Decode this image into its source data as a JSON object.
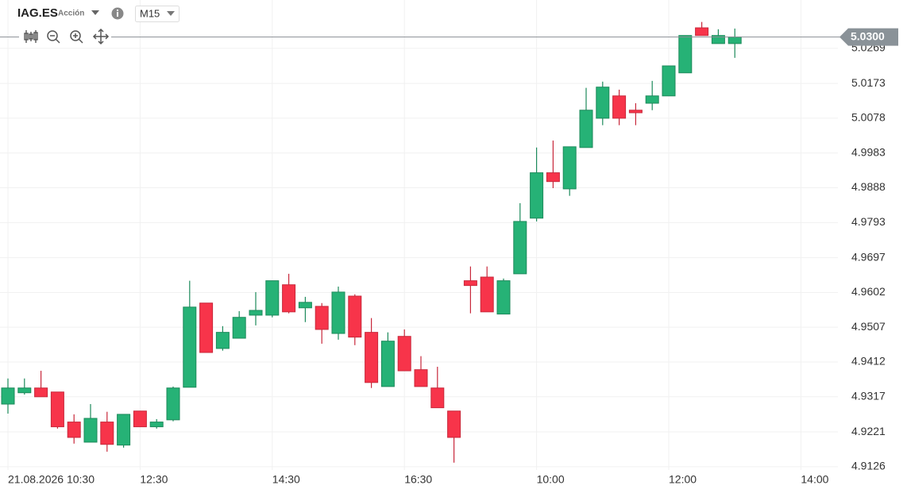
{
  "header": {
    "symbol": "IAG.ES",
    "instrument_type": "Acción",
    "timeframe": "M15"
  },
  "chart_data": {
    "type": "candlestick",
    "categories": [
      "21.08.2026 10:30",
      null,
      null,
      null,
      null,
      null,
      null,
      null,
      "12:30",
      null,
      null,
      null,
      null,
      null,
      null,
      null,
      "14:30",
      null,
      null,
      null,
      null,
      null,
      null,
      null,
      "16:30",
      null,
      null,
      null,
      null,
      null,
      null,
      null,
      "10:00",
      null,
      null,
      null,
      null,
      null,
      null,
      null,
      "12:00",
      null,
      null,
      null,
      null,
      null,
      null,
      null,
      "14:00"
    ],
    "open": [
      4.9297,
      4.9328,
      4.9341,
      4.933,
      4.9248,
      4.9193,
      4.9248,
      4.9185,
      4.9278,
      4.9235,
      4.9254,
      4.9343,
      4.9573,
      4.9449,
      4.9477,
      4.954,
      4.954,
      4.9623,
      4.956,
      4.9564,
      4.949,
      4.9592,
      4.9493,
      4.9345,
      4.9482,
      4.9391,
      4.9341,
      4.9278,
      4.9634,
      4.9644,
      4.9543,
      4.9653,
      4.9805,
      4.9929,
      4.9885,
      4.9998,
      5.0078,
      5.0139,
      5.01,
      5.0119,
      5.0139,
      5.0202,
      5.0325,
      5.0282,
      5.0282,
      null,
      null,
      null,
      null
    ],
    "high": [
      4.9367,
      4.9367,
      4.9388,
      4.933,
      4.9269,
      4.9297,
      4.9276,
      4.9269,
      4.9278,
      4.9256,
      4.9345,
      4.9634,
      4.9573,
      4.951,
      4.9551,
      4.9603,
      4.9634,
      4.9653,
      4.959,
      4.9573,
      4.9618,
      4.9597,
      4.9532,
      4.9493,
      4.9501,
      4.9428,
      4.9399,
      4.9278,
      4.9673,
      4.9673,
      4.964,
      4.9846,
      4.9998,
      5.0017,
      5.0,
      5.0161,
      5.0178,
      5.0156,
      5.0119,
      5.018,
      5.0221,
      5.0304,
      5.0341,
      5.0321,
      5.0323,
      null,
      null,
      null,
      null
    ],
    "low": [
      4.9271,
      4.9323,
      4.9317,
      4.923,
      4.9189,
      4.9193,
      4.9167,
      4.9178,
      4.9235,
      4.923,
      4.925,
      4.9343,
      4.9438,
      4.9443,
      4.9477,
      4.9512,
      4.9534,
      4.9545,
      4.9521,
      4.9462,
      4.9473,
      4.9458,
      4.9341,
      4.9345,
      4.9388,
      4.9345,
      4.9287,
      4.9137,
      4.9545,
      4.9549,
      4.9543,
      4.9653,
      4.9796,
      4.9887,
      4.9866,
      4.9998,
      5.0059,
      5.0059,
      5.0059,
      5.01,
      5.0139,
      5.0202,
      5.0304,
      5.0282,
      5.0243,
      null,
      null,
      null,
      null
    ],
    "close": [
      4.9341,
      4.9341,
      4.9317,
      4.9235,
      4.9206,
      4.9258,
      4.9187,
      4.9269,
      4.9235,
      4.9248,
      4.9341,
      4.9562,
      4.9438,
      4.9493,
      4.9534,
      4.9553,
      4.9634,
      4.9549,
      4.9575,
      4.9501,
      4.9603,
      4.948,
      4.9356,
      4.9469,
      4.9388,
      4.9345,
      4.9287,
      4.9206,
      4.9621,
      4.9549,
      4.9634,
      4.9796,
      4.9929,
      4.9905,
      5.0,
      5.01,
      5.0163,
      5.0078,
      5.0093,
      5.0139,
      5.0221,
      5.0304,
      5.0304,
      5.0304,
      5.03,
      null,
      null,
      null,
      null
    ],
    "up_color": "#26b276",
    "down_color": "#f7344a",
    "ylim": [
      4.9117,
      5.0401
    ],
    "yticks": [
      4.9126,
      4.9221,
      4.9317,
      4.9412,
      4.9507,
      4.9602,
      4.9697,
      4.9793,
      4.9888,
      4.9983,
      5.0078,
      5.0173,
      5.0269
    ],
    "last_price": {
      "value": 5.03,
      "label": "5.0300"
    },
    "grid": true
  }
}
